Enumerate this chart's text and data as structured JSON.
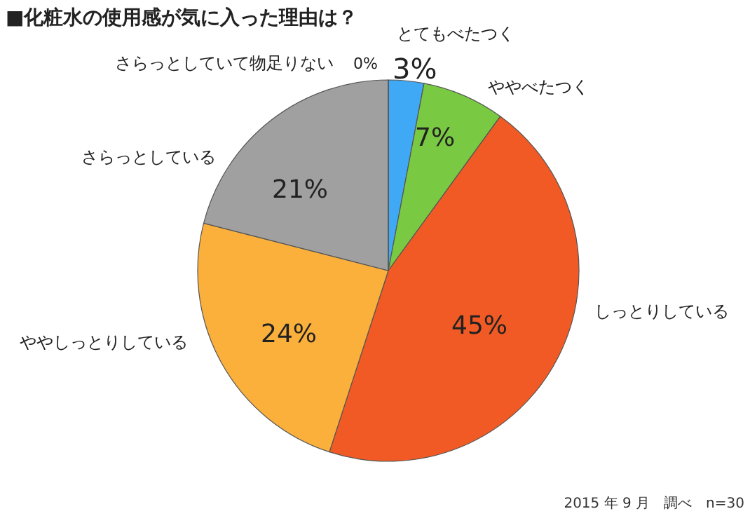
{
  "chart_data": {
    "type": "pie",
    "title": "■化粧水の使用感が気に入った理由は？",
    "categories": [
      "とてもべたつく",
      "ややべたつく",
      "しっとりしている",
      "ややしっとりしている",
      "さらっとしている",
      "さらっとしていて物足りない"
    ],
    "values": [
      3,
      7,
      45,
      24,
      21,
      0
    ],
    "value_labels": [
      "3%",
      "7%",
      "45%",
      "24%",
      "21%",
      "0%"
    ],
    "colors": [
      "#3fa9f5",
      "#7ac943",
      "#f15a24",
      "#fbb03b",
      "#a0a0a0",
      "#cccccc"
    ],
    "annotations": [
      "2015 年 9 月　調べ　n=30"
    ]
  }
}
